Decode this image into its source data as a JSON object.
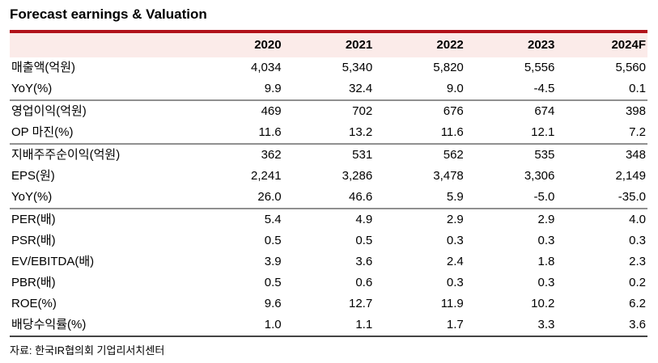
{
  "title": "Forecast earnings & Valuation",
  "source": "자료: 한국IR협의회 기업리서치센터",
  "colors": {
    "accent_red": "#B1121A",
    "header_bg": "#FBEBE9",
    "section_divider": "#909090",
    "bottom_border": "#444444"
  },
  "table": {
    "columns": [
      "2020",
      "2021",
      "2022",
      "2023",
      "2024F"
    ],
    "rows": [
      {
        "label": "매출액(억원)",
        "values": [
          "4,034",
          "5,340",
          "5,820",
          "5,556",
          "5,560"
        ],
        "divider": false
      },
      {
        "label": "YoY(%)",
        "values": [
          "9.9",
          "32.4",
          "9.0",
          "-4.5",
          "0.1"
        ],
        "divider": true
      },
      {
        "label": "영업이익(억원)",
        "values": [
          "469",
          "702",
          "676",
          "674",
          "398"
        ],
        "divider": false
      },
      {
        "label": "OP 마진(%)",
        "values": [
          "11.6",
          "13.2",
          "11.6",
          "12.1",
          "7.2"
        ],
        "divider": true
      },
      {
        "label": "지배주주순이익(억원)",
        "values": [
          "362",
          "531",
          "562",
          "535",
          "348"
        ],
        "divider": false
      },
      {
        "label": "EPS(원)",
        "values": [
          "2,241",
          "3,286",
          "3,478",
          "3,306",
          "2,149"
        ],
        "divider": false
      },
      {
        "label": "YoY(%)",
        "values": [
          "26.0",
          "46.6",
          "5.9",
          "-5.0",
          "-35.0"
        ],
        "divider": true
      },
      {
        "label": "PER(배)",
        "values": [
          "5.4",
          "4.9",
          "2.9",
          "2.9",
          "4.0"
        ],
        "divider": false
      },
      {
        "label": "PSR(배)",
        "values": [
          "0.5",
          "0.5",
          "0.3",
          "0.3",
          "0.3"
        ],
        "divider": false
      },
      {
        "label": "EV/EBITDA(배)",
        "values": [
          "3.9",
          "3.6",
          "2.4",
          "1.8",
          "2.3"
        ],
        "divider": false
      },
      {
        "label": "PBR(배)",
        "values": [
          "0.5",
          "0.6",
          "0.3",
          "0.3",
          "0.2"
        ],
        "divider": false
      },
      {
        "label": "ROE(%)",
        "values": [
          "9.6",
          "12.7",
          "11.9",
          "10.2",
          "6.2"
        ],
        "divider": false
      },
      {
        "label": "배당수익률(%)",
        "values": [
          "1.0",
          "1.1",
          "1.7",
          "3.3",
          "3.6"
        ],
        "divider": false
      }
    ]
  }
}
